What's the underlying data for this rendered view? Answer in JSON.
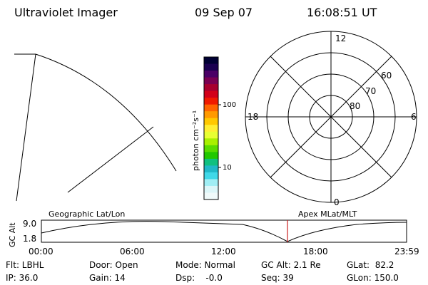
{
  "header": {
    "instrument": "Ultraviolet Imager",
    "date": "09 Sep 07",
    "time": "16:08:51 UT"
  },
  "colorbar": {
    "label": "photon cm⁻²s⁻¹",
    "tick_labels": [
      "100",
      "10"
    ],
    "colors": [
      "#000033",
      "#1a0050",
      "#4b0066",
      "#7a0052",
      "#a8002e",
      "#d2001a",
      "#f01a00",
      "#ff6400",
      "#ff9a00",
      "#ffc800",
      "#ffee33",
      "#e8ff33",
      "#a8f000",
      "#5adc00",
      "#22c800",
      "#10c080",
      "#20b8c8",
      "#40d8e8",
      "#a0eef4",
      "#dcf6f8",
      "#f0fafa"
    ]
  },
  "polar": {
    "labels": [
      "12",
      "60",
      "70",
      "80",
      "18",
      "6",
      "0"
    ]
  },
  "timeline": {
    "y_label": "GC Alt",
    "y_ticks": [
      "9.0",
      "1.8"
    ],
    "left_title": "Geographic Lat/Lon",
    "right_title": "Apex MLat/MLT",
    "x_ticks": [
      "00:00",
      "06:00",
      "12:00",
      "18:00",
      "23:59"
    ],
    "marker_color": "#cc2222",
    "marker_time": "16:08:51"
  },
  "info": {
    "flt": "Flt: LBHL",
    "ip": "IP: 36.0",
    "door": "Door: Open",
    "gain": "Gain: 14",
    "mode": "Mode: Normal",
    "dsp": "Dsp:    -0.0",
    "gcalt": "GC Alt: 2.1 Re",
    "seq": "Seq: 39",
    "glat": "GLat:  82.2",
    "glon": "GLon: 150.0"
  }
}
